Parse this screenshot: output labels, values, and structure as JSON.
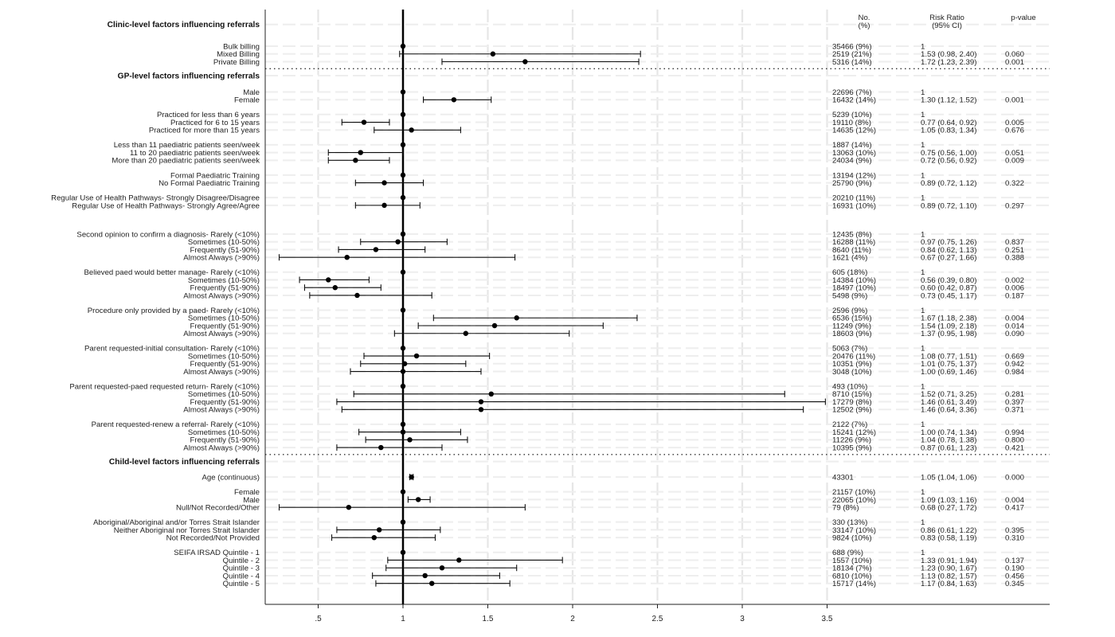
{
  "chart_data": {
    "type": "forest",
    "x_ticks": [
      0.5,
      1,
      1.5,
      2,
      2.5,
      3,
      3.5
    ],
    "x_tick_labels": [
      ".5",
      "1",
      "1.5",
      "2",
      "2.5",
      "3",
      "3.5"
    ],
    "xlim": [
      0.25,
      4.15
    ],
    "reference_line": 1,
    "column_headers": {
      "n_line1": "No.",
      "n_line2": "(%)",
      "rr_line1": "Risk Ratio",
      "rr_line2": "(95% CI)",
      "p": "p-value"
    },
    "sections": [
      {
        "title": "Clinic-level factors influencing referrals",
        "title_row": 2,
        "rows": [
          {
            "row": 4.8,
            "label": "Bulk billing",
            "n": "35466 (9%)",
            "rr_text": "1",
            "p": "",
            "est": 1,
            "lo": null,
            "hi": null
          },
          {
            "row": 5.8,
            "label": "Mixed Billing",
            "n": "2519 (21%)",
            "rr_text": "1.53 (0.98, 2.40)",
            "p": "0.060",
            "est": 1.53,
            "lo": 0.98,
            "hi": 2.4
          },
          {
            "row": 6.8,
            "label": "Private Billing",
            "n": "5316 (14%)",
            "rr_text": "1.72 (1.23, 2.39)",
            "p": "0.001",
            "est": 1.72,
            "lo": 1.23,
            "hi": 2.39
          }
        ]
      },
      {
        "title": "GP-level factors influencing referrals",
        "title_row": 8.6,
        "rows": [
          {
            "row": 10.7,
            "label": "Male",
            "n": "22696 (7%)",
            "rr_text": "1",
            "p": "",
            "est": 1,
            "lo": null,
            "hi": null
          },
          {
            "row": 11.7,
            "label": "Female",
            "n": "16432 (14%)",
            "rr_text": "1.30 (1.12, 1.52)",
            "p": "0.001",
            "est": 1.3,
            "lo": 1.12,
            "hi": 1.52
          },
          {
            "row": 13.6,
            "label": "Practiced for less than 6 years",
            "n": "5239 (10%)",
            "rr_text": "1",
            "p": "",
            "est": 1,
            "lo": null,
            "hi": null
          },
          {
            "row": 14.6,
            "label": "Practiced for 6 to 15 years",
            "n": "19110 (8%)",
            "rr_text": "0.77 (0.64, 0.92)",
            "p": "0.005",
            "est": 0.77,
            "lo": 0.64,
            "hi": 0.92
          },
          {
            "row": 15.6,
            "label": "Practiced for more than 15 years",
            "n": "14635 (12%)",
            "rr_text": "1.05 (0.83, 1.34)",
            "p": "0.676",
            "est": 1.05,
            "lo": 0.83,
            "hi": 1.34
          },
          {
            "row": 17.5,
            "label": "Less than 11 paediatric patients seen/week",
            "n": "1887 (14%)",
            "rr_text": "1",
            "p": "",
            "est": 1,
            "lo": null,
            "hi": null
          },
          {
            "row": 18.5,
            "label": "11 to 20 paediatric patients seen/week",
            "n": "13063 (10%)",
            "rr_text": "0.75 (0.56, 1.00)",
            "p": "0.051",
            "est": 0.75,
            "lo": 0.56,
            "hi": 1.0
          },
          {
            "row": 19.5,
            "label": "More than 20 paediatric patients seen/week",
            "n": "24034 (9%)",
            "rr_text": "0.72 (0.56, 0.92)",
            "p": "0.009",
            "est": 0.72,
            "lo": 0.56,
            "hi": 0.92
          },
          {
            "row": 21.4,
            "label": "Formal Paediatric Training",
            "n": "13194 (12%)",
            "rr_text": "1",
            "p": "",
            "est": 1,
            "lo": null,
            "hi": null
          },
          {
            "row": 22.4,
            "label": "No Formal Paediatric Training",
            "n": "25790 (9%)",
            "rr_text": "0.89 (0.72, 1.12)",
            "p": "0.322",
            "est": 0.89,
            "lo": 0.72,
            "hi": 1.12
          },
          {
            "row": 24.3,
            "label": "Regular Use of Health Pathways- Strongly Disagree/Disagree",
            "n": "20210 (11%)",
            "rr_text": "1",
            "p": "",
            "est": 1,
            "lo": null,
            "hi": null
          },
          {
            "row": 25.3,
            "label": "Regular Use of Health Pathways- Strongly Agree/Agree",
            "n": "16931 (10%)",
            "rr_text": "0.89 (0.72, 1.10)",
            "p": "0.297",
            "est": 0.89,
            "lo": 0.72,
            "hi": 1.1
          },
          {
            "row": 29.0,
            "label": "Second opinion to confirm a diagnosis- Rarely (<10%)",
            "n": "12435 (8%)",
            "rr_text": "1",
            "p": "",
            "est": 1,
            "lo": null,
            "hi": null
          },
          {
            "row": 30.0,
            "label": "Sometimes (10-50%)",
            "n": "16288 (11%)",
            "rr_text": "0.97 (0.75, 1.26)",
            "p": "0.837",
            "est": 0.97,
            "lo": 0.75,
            "hi": 1.26
          },
          {
            "row": 31.0,
            "label": "Frequently (51-90%)",
            "n": "8640 (11%)",
            "rr_text": "0.84 (0.62, 1.13)",
            "p": "0.251",
            "est": 0.84,
            "lo": 0.62,
            "hi": 1.13
          },
          {
            "row": 32.0,
            "label": "Almost Always (>90%)",
            "n": "1621 (4%)",
            "rr_text": "0.67 (0.27, 1.66)",
            "p": "0.388",
            "est": 0.67,
            "lo": 0.27,
            "hi": 1.66
          },
          {
            "row": 33.9,
            "label": "Believed paed would better manage- Rarely (<10%)",
            "n": "605 (18%)",
            "rr_text": "1",
            "p": "",
            "est": 1,
            "lo": null,
            "hi": null
          },
          {
            "row": 34.9,
            "label": "Sometimes (10-50%)",
            "n": "14384 (10%)",
            "rr_text": "0.56 (0.39, 0.80)",
            "p": "0.002",
            "est": 0.56,
            "lo": 0.39,
            "hi": 0.8
          },
          {
            "row": 35.9,
            "label": "Frequently (51-90%)",
            "n": "18497 (10%)",
            "rr_text": "0.60 (0.42, 0.87)",
            "p": "0.006",
            "est": 0.6,
            "lo": 0.42,
            "hi": 0.87
          },
          {
            "row": 36.9,
            "label": "Almost Always (>90%)",
            "n": "5498 (9%)",
            "rr_text": "0.73 (0.45, 1.17)",
            "p": "0.187",
            "est": 0.73,
            "lo": 0.45,
            "hi": 1.17
          },
          {
            "row": 38.8,
            "label": "Procedure only provided by a paed- Rarely (<10%)",
            "n": "2596 (9%)",
            "rr_text": "1",
            "p": "",
            "est": 1,
            "lo": null,
            "hi": null
          },
          {
            "row": 39.8,
            "label": "Sometimes (10-50%)",
            "n": "6536 (15%)",
            "rr_text": "1.67 (1.18, 2.38)",
            "p": "0.004",
            "est": 1.67,
            "lo": 1.18,
            "hi": 2.38
          },
          {
            "row": 40.8,
            "label": "Frequently (51-90%)",
            "n": "11249 (9%)",
            "rr_text": "1.54 (1.09, 2.18)",
            "p": "0.014",
            "est": 1.54,
            "lo": 1.09,
            "hi": 2.18
          },
          {
            "row": 41.8,
            "label": "Almost Always (>90%)",
            "n": "18603 (9%)",
            "rr_text": "1.37 (0.95, 1.98)",
            "p": "0.090",
            "est": 1.37,
            "lo": 0.95,
            "hi": 1.98
          },
          {
            "row": 43.7,
            "label": "Parent requested-initial consultation- Rarely (<10%)",
            "n": "5063 (7%)",
            "rr_text": "1",
            "p": "",
            "est": 1,
            "lo": null,
            "hi": null
          },
          {
            "row": 44.7,
            "label": "Sometimes (10-50%)",
            "n": "20476 (11%)",
            "rr_text": "1.08 (0.77, 1.51)",
            "p": "0.669",
            "est": 1.08,
            "lo": 0.77,
            "hi": 1.51
          },
          {
            "row": 45.7,
            "label": "Frequently (51-90%)",
            "n": "10351 (9%)",
            "rr_text": "1.01 (0.75, 1.37)",
            "p": "0.942",
            "est": 1.01,
            "lo": 0.75,
            "hi": 1.37
          },
          {
            "row": 46.7,
            "label": "Almost Always (>90%)",
            "n": "3048 (10%)",
            "rr_text": "1.00 (0.69, 1.46)",
            "p": "0.984",
            "est": 1.0,
            "lo": 0.69,
            "hi": 1.46
          },
          {
            "row": 48.6,
            "label": "Parent requested-paed requested return- Rarely (<10%)",
            "n": "493 (10%)",
            "rr_text": "1",
            "p": "",
            "est": 1,
            "lo": null,
            "hi": null
          },
          {
            "row": 49.6,
            "label": "Sometimes (10-50%)",
            "n": "8710 (15%)",
            "rr_text": "1.52 (0.71, 3.25)",
            "p": "0.281",
            "est": 1.52,
            "lo": 0.71,
            "hi": 3.25
          },
          {
            "row": 50.6,
            "label": "Frequently (51-90%)",
            "n": "17279 (8%)",
            "rr_text": "1.46 (0.61, 3.49)",
            "p": "0.397",
            "est": 1.46,
            "lo": 0.61,
            "hi": 3.49
          },
          {
            "row": 51.6,
            "label": "Almost Always (>90%)",
            "n": "12502 (9%)",
            "rr_text": "1.46 (0.64, 3.36)",
            "p": "0.371",
            "est": 1.46,
            "lo": 0.64,
            "hi": 3.36
          },
          {
            "row": 53.5,
            "label": "Parent requested-renew a referral- Rarely (<10%)",
            "n": "2122 (7%)",
            "rr_text": "1",
            "p": "",
            "est": 1,
            "lo": null,
            "hi": null
          },
          {
            "row": 54.5,
            "label": "Sometimes (10-50%)",
            "n": "15241 (12%)",
            "rr_text": "1.00 (0.74, 1.34)",
            "p": "0.994",
            "est": 1.0,
            "lo": 0.74,
            "hi": 1.34
          },
          {
            "row": 55.5,
            "label": "Frequently (51-90%)",
            "n": "11226 (9%)",
            "rr_text": "1.04 (0.78, 1.38)",
            "p": "0.800",
            "est": 1.04,
            "lo": 0.78,
            "hi": 1.38
          },
          {
            "row": 56.5,
            "label": "Almost Always (>90%)",
            "n": "10395 (9%)",
            "rr_text": "0.87 (0.61, 1.23)",
            "p": "0.421",
            "est": 0.87,
            "lo": 0.61,
            "hi": 1.23
          }
        ]
      },
      {
        "title": "Child-level factors influencing referrals",
        "title_row": 58.3,
        "rows": [
          {
            "row": 60.3,
            "label": "Age (continuous)",
            "n": "43301",
            "rr_text": "1.05 (1.04, 1.06)",
            "p": "0.000",
            "est": 1.05,
            "lo": 1.04,
            "hi": 1.06
          },
          {
            "row": 62.2,
            "label": "Female",
            "n": "21157 (10%)",
            "rr_text": "1",
            "p": "",
            "est": 1,
            "lo": null,
            "hi": null
          },
          {
            "row": 63.2,
            "label": "Male",
            "n": "22065 (10%)",
            "rr_text": "1.09 (1.03, 1.16)",
            "p": "0.004",
            "est": 1.09,
            "lo": 1.03,
            "hi": 1.16
          },
          {
            "row": 64.2,
            "label": "Null/Not Recorded/Other",
            "n": "79 (8%)",
            "rr_text": "0.68 (0.27, 1.72)",
            "p": "0.417",
            "est": 0.68,
            "lo": 0.27,
            "hi": 1.72
          },
          {
            "row": 66.1,
            "label": "Aboriginal/Aboriginal and/or Torres Strait Islander",
            "n": "330 (13%)",
            "rr_text": "1",
            "p": "",
            "est": 1,
            "lo": null,
            "hi": null
          },
          {
            "row": 67.1,
            "label": "Neither Aboriginal nor Torres Strait Islander",
            "n": "33147 (10%)",
            "rr_text": "0.86 (0.61, 1.22)",
            "p": "0.395",
            "est": 0.86,
            "lo": 0.61,
            "hi": 1.22
          },
          {
            "row": 68.1,
            "label": "Not Recorded/Not Provided",
            "n": "9824 (10%)",
            "rr_text": "0.83 (0.58, 1.19)",
            "p": "0.310",
            "est": 0.83,
            "lo": 0.58,
            "hi": 1.19
          },
          {
            "row": 70.0,
            "label": "SEIFA IRSAD Quintile - 1",
            "n": "688 (9%)",
            "rr_text": "1",
            "p": "",
            "est": 1,
            "lo": null,
            "hi": null
          },
          {
            "row": 71.0,
            "label": "Quintile - 2",
            "n": "1557 (10%)",
            "rr_text": "1.33 (0.91, 1.94)",
            "p": "0.137",
            "est": 1.33,
            "lo": 0.91,
            "hi": 1.94
          },
          {
            "row": 72.0,
            "label": "Quintile - 3",
            "n": "18134 (7%)",
            "rr_text": "1.23 (0.90, 1.67)",
            "p": "0.190",
            "est": 1.23,
            "lo": 0.9,
            "hi": 1.67
          },
          {
            "row": 73.0,
            "label": "Quintile - 4",
            "n": "6810 (10%)",
            "rr_text": "1.13 (0.82, 1.57)",
            "p": "0.456",
            "est": 1.13,
            "lo": 0.82,
            "hi": 1.57
          },
          {
            "row": 74.0,
            "label": "Quintile - 5",
            "n": "15717 (14%)",
            "rr_text": "1.17 (0.84, 1.63)",
            "p": "0.345",
            "est": 1.17,
            "lo": 0.84,
            "hi": 1.63
          }
        ]
      }
    ],
    "divider_rows": [
      7.7,
      57.4
    ]
  }
}
